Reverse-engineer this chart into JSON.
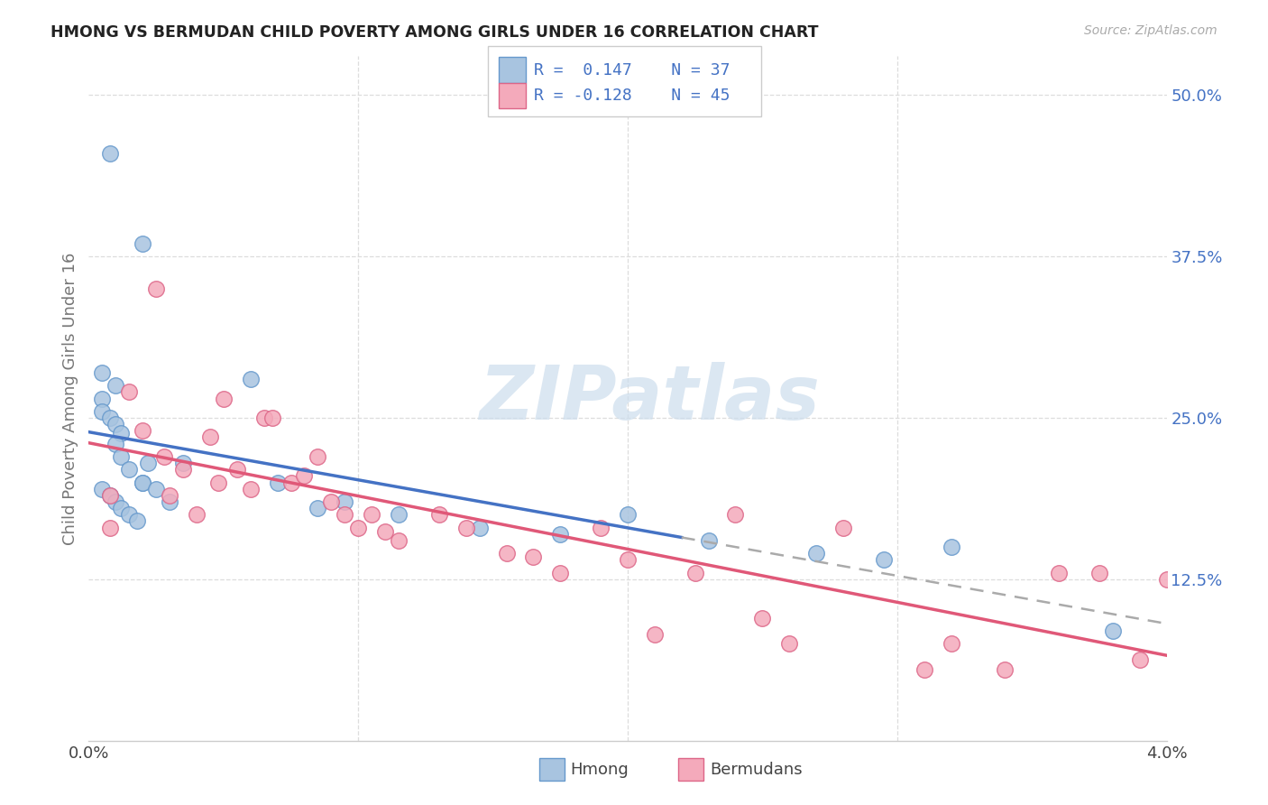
{
  "title": "HMONG VS BERMUDAN CHILD POVERTY AMONG GIRLS UNDER 16 CORRELATION CHART",
  "source": "Source: ZipAtlas.com",
  "ylabel": "Child Poverty Among Girls Under 16",
  "xmin": 0.0,
  "xmax": 0.04,
  "ymin": 0.0,
  "ymax": 0.5,
  "yticks": [
    0.125,
    0.25,
    0.375,
    0.5
  ],
  "ytick_labels": [
    "12.5%",
    "25.0%",
    "37.5%",
    "50.0%"
  ],
  "hmong_color": "#a8c4e0",
  "hmong_edge_color": "#6699cc",
  "bermuda_color": "#f4aabb",
  "bermuda_edge_color": "#dd6688",
  "hmong_line_color": "#4472c4",
  "bermuda_line_color": "#e05878",
  "dashed_line_color": "#aaaaaa",
  "legend_text_color": "#4472c4",
  "watermark_color": "#ccdded",
  "R_hmong": 0.147,
  "N_hmong": 37,
  "R_bermuda": -0.128,
  "N_bermuda": 45,
  "hmong_x": [
    0.0008,
    0.002,
    0.0005,
    0.001,
    0.0005,
    0.0005,
    0.0008,
    0.001,
    0.0012,
    0.001,
    0.0012,
    0.0015,
    0.002,
    0.0005,
    0.0008,
    0.001,
    0.0012,
    0.0015,
    0.0018,
    0.002,
    0.0022,
    0.0025,
    0.003,
    0.0035,
    0.006,
    0.007,
    0.0085,
    0.0095,
    0.0115,
    0.0145,
    0.0175,
    0.02,
    0.023,
    0.027,
    0.0295,
    0.032,
    0.038
  ],
  "hmong_y": [
    0.455,
    0.385,
    0.285,
    0.275,
    0.265,
    0.255,
    0.25,
    0.245,
    0.238,
    0.23,
    0.22,
    0.21,
    0.2,
    0.195,
    0.19,
    0.185,
    0.18,
    0.175,
    0.17,
    0.2,
    0.215,
    0.195,
    0.185,
    0.215,
    0.28,
    0.2,
    0.18,
    0.185,
    0.175,
    0.165,
    0.16,
    0.175,
    0.155,
    0.145,
    0.14,
    0.15,
    0.085
  ],
  "bermuda_x": [
    0.0008,
    0.0008,
    0.0015,
    0.002,
    0.0025,
    0.0028,
    0.003,
    0.0035,
    0.004,
    0.0045,
    0.0048,
    0.005,
    0.0055,
    0.006,
    0.0065,
    0.0068,
    0.0075,
    0.008,
    0.0085,
    0.009,
    0.0095,
    0.01,
    0.0105,
    0.011,
    0.0115,
    0.013,
    0.014,
    0.0155,
    0.0165,
    0.0175,
    0.019,
    0.02,
    0.021,
    0.0225,
    0.024,
    0.025,
    0.026,
    0.028,
    0.031,
    0.032,
    0.034,
    0.036,
    0.0375,
    0.039,
    0.04
  ],
  "bermuda_y": [
    0.19,
    0.165,
    0.27,
    0.24,
    0.35,
    0.22,
    0.19,
    0.21,
    0.175,
    0.235,
    0.2,
    0.265,
    0.21,
    0.195,
    0.25,
    0.25,
    0.2,
    0.205,
    0.22,
    0.185,
    0.175,
    0.165,
    0.175,
    0.162,
    0.155,
    0.175,
    0.165,
    0.145,
    0.142,
    0.13,
    0.165,
    0.14,
    0.082,
    0.13,
    0.175,
    0.095,
    0.075,
    0.165,
    0.055,
    0.075,
    0.055,
    0.13,
    0.13,
    0.063,
    0.125
  ],
  "background_color": "#ffffff",
  "grid_color": "#dddddd"
}
